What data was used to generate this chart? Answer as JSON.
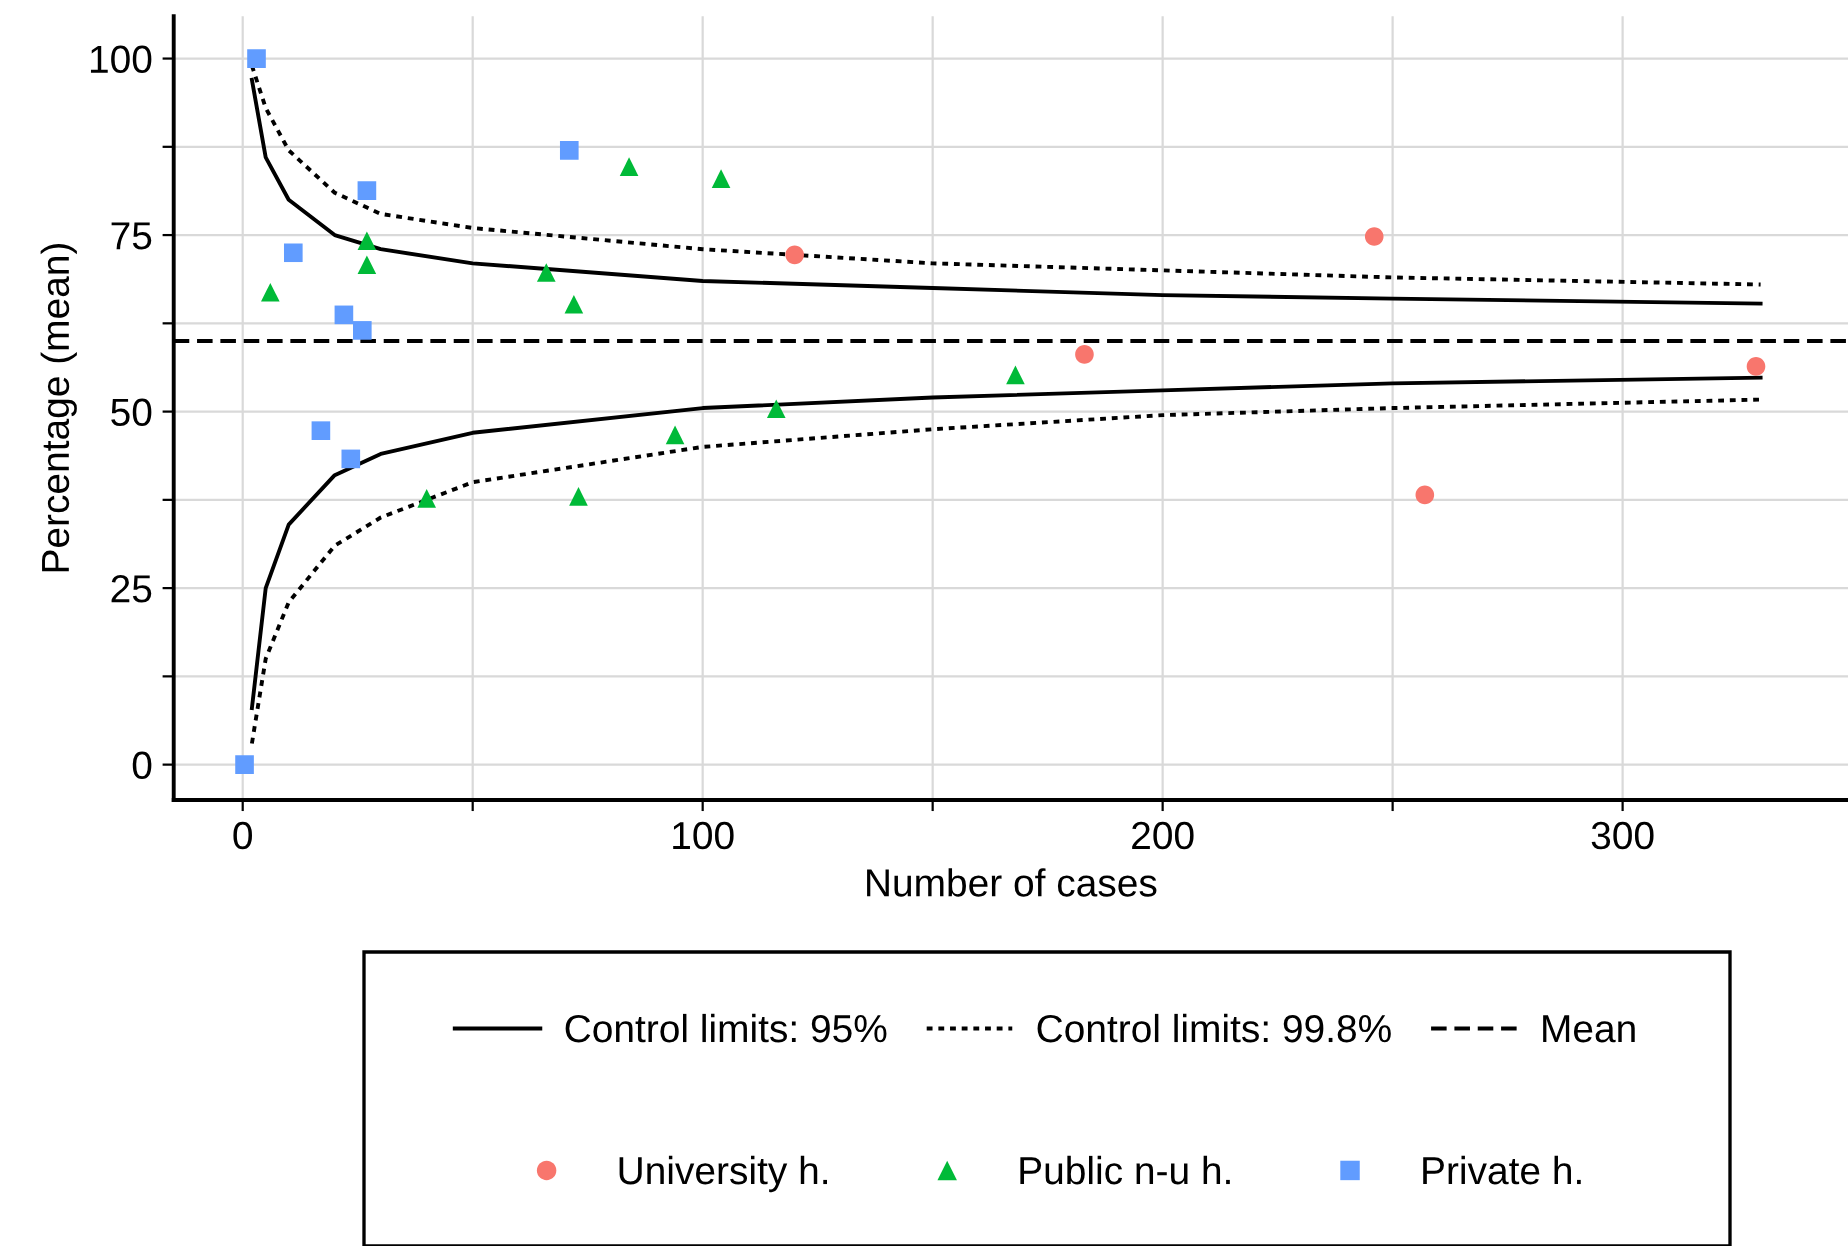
{
  "chart_data": {
    "type": "scatter",
    "xlabel": "Number of cases",
    "ylabel": "Percentage (mean)",
    "xlim": [
      -15,
      349
    ],
    "ylim": [
      -5,
      106
    ],
    "xticks": [
      0,
      {
        "value": 50,
        "label": null
      },
      100,
      {
        "value": 150,
        "label": null
      },
      200,
      {
        "value": 250,
        "label": null
      },
      300
    ],
    "yticks": [
      0,
      {
        "value": 12.5,
        "label": null
      },
      25,
      {
        "value": 37.5,
        "label": null
      },
      50,
      {
        "value": 62.5,
        "label": null
      },
      75,
      {
        "value": 87.5,
        "label": null
      },
      100
    ],
    "grid": true,
    "legend": "bottom",
    "ref_lines": [
      {
        "axis": "y",
        "value": 60,
        "label": "Mean",
        "color": "#000000",
        "line_style": "dashed"
      }
    ],
    "series": [
      {
        "type": "line",
        "name": "Control limits: 95%",
        "color": "#000000",
        "line_style": "solid",
        "marker": "none",
        "x": [
          2,
          5,
          10,
          20,
          30,
          50,
          100,
          150,
          200,
          250,
          330
        ],
        "values": [
          97,
          86,
          80,
          75,
          73,
          71,
          68.5,
          67.5,
          66.5,
          66,
          65.3
        ]
      },
      {
        "type": "line",
        "color": "#000000",
        "line_style": "solid",
        "marker": "none",
        "x": [
          2,
          5,
          10,
          20,
          30,
          50,
          100,
          150,
          200,
          250,
          330
        ],
        "values": [
          8,
          25,
          34,
          41,
          44,
          47,
          50.5,
          52,
          53,
          54,
          54.8
        ]
      },
      {
        "type": "line",
        "name": "Control limits: 99.8%",
        "color": "#000000",
        "line_style": "dotted",
        "marker": "none",
        "x": [
          2,
          5,
          10,
          20,
          30,
          50,
          100,
          150,
          200,
          250,
          330
        ],
        "values": [
          99,
          93,
          87,
          81,
          78,
          76,
          73,
          71,
          70,
          69,
          68
        ]
      },
      {
        "type": "line",
        "color": "#000000",
        "line_style": "dotted",
        "marker": "none",
        "x": [
          2,
          5,
          10,
          20,
          30,
          50,
          100,
          150,
          200,
          250,
          330
        ],
        "values": [
          3,
          15,
          23,
          31,
          35,
          40,
          45,
          47.5,
          49.5,
          50.5,
          51.7
        ]
      },
      {
        "name": "University h.",
        "color": "#f8766d",
        "marker": "circle",
        "x": [
          120,
          183,
          246,
          257,
          329
        ],
        "values": [
          72.2,
          58.1,
          74.8,
          38.2,
          56.4
        ]
      },
      {
        "name": "Public n-u h.",
        "color": "#00ba38",
        "marker": "triangle",
        "x": [
          6,
          27,
          27,
          40,
          66,
          72,
          73,
          84,
          104,
          94,
          116,
          168
        ],
        "values": [
          66.9,
          74.2,
          70.8,
          37.7,
          69.7,
          65.2,
          38,
          84.7,
          83,
          46.7,
          50.4,
          55.2
        ]
      },
      {
        "name": "Private h.",
        "color": "#619cff",
        "marker": "square",
        "x": [
          0.4,
          3,
          11,
          22,
          26,
          27,
          17,
          23.5,
          71
        ],
        "values": [
          0,
          100,
          72.5,
          63.7,
          61.5,
          81.3,
          47.3,
          43.3,
          87
        ]
      }
    ]
  }
}
